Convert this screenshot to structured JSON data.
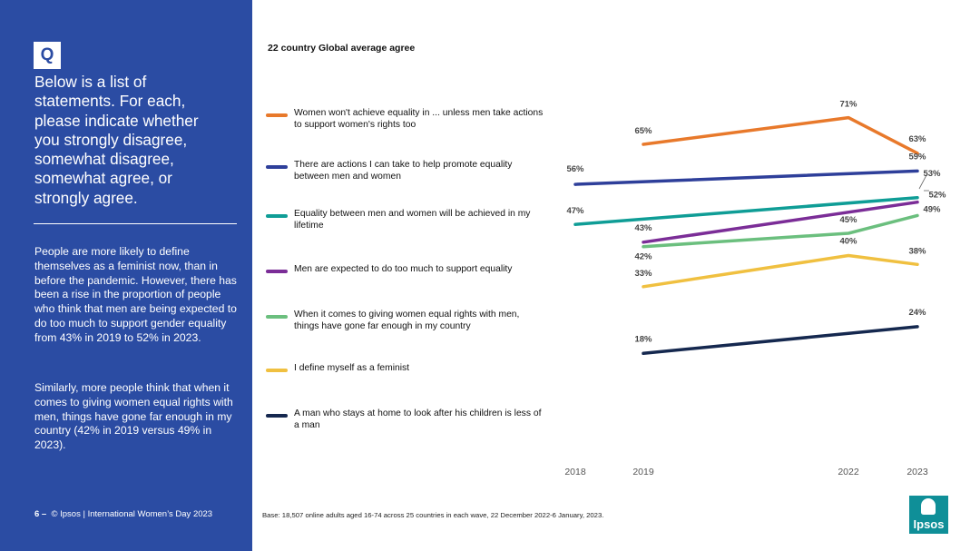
{
  "sidebar": {
    "badge": "Q",
    "question": "Below is a list of statements. For each, please indicate whether you strongly disagree, somewhat disagree, somewhat agree, or strongly agree.",
    "paragraph1": "People are more likely to define themselves as a feminist now, than in before the pandemic. However, there has been a rise in the proportion of people who think that men are being expected to do too much to support gender equality from 43% in 2019 to 52% in 2023.",
    "paragraph2": "Similarly, more people think that when it comes to giving women equal rights with men, things have gone far enough in my country (42% in 2019 versus 49% in 2023).",
    "page_number": "6 –",
    "footer": "© Ipsos | International Women’s Day 2023"
  },
  "footnote": "Base: 18,507 online adults aged 16-74 across 25 countries in each wave, 22 December 2022-6 January, 2023.",
  "logo_text": "Ipsos",
  "chart_data": {
    "type": "line",
    "title": "22 country Global average agree",
    "xlabel": "",
    "ylabel": "",
    "x": [
      "2018",
      "2019",
      "2022",
      "2023"
    ],
    "ylim": [
      15,
      75
    ],
    "legend_position": "left",
    "series": [
      {
        "name": "Women won't achieve equality in ... unless men take actions to support women's rights too",
        "color": "#E8792B",
        "values": [
          null,
          65,
          71,
          63
        ],
        "labels": [
          null,
          "65%",
          "71%",
          "63%"
        ]
      },
      {
        "name": "There are actions I can take to help promote equality between men and women",
        "color": "#2E3F9A",
        "values": [
          56,
          null,
          null,
          59
        ],
        "labels": [
          "56%",
          null,
          null,
          "59%"
        ]
      },
      {
        "name": "Equality between men and women will be achieved in my lifetime",
        "color": "#0F9D96",
        "values": [
          47,
          null,
          null,
          53
        ],
        "labels": [
          "47%",
          null,
          null,
          "53%"
        ]
      },
      {
        "name": "Men are expected to do too much to support equality",
        "color": "#7B2D97",
        "values": [
          null,
          43,
          null,
          52
        ],
        "labels": [
          null,
          "43%",
          null,
          "52%"
        ]
      },
      {
        "name": "When it comes to giving women equal rights with men, things have gone far enough in my country",
        "color": "#6BBF7E",
        "values": [
          null,
          42,
          45,
          49
        ],
        "labels": [
          null,
          "42%",
          "45%",
          "49%"
        ]
      },
      {
        "name": "I define myself as a feminist",
        "color": "#F0C040",
        "values": [
          null,
          33,
          40,
          38
        ],
        "labels": [
          null,
          "33%",
          "40%",
          "38%"
        ]
      },
      {
        "name": "A man who stays at home to look after his children is less of a man",
        "color": "#15284F",
        "values": [
          null,
          18,
          null,
          24
        ],
        "labels": [
          null,
          "18%",
          null,
          "24%"
        ]
      }
    ]
  }
}
